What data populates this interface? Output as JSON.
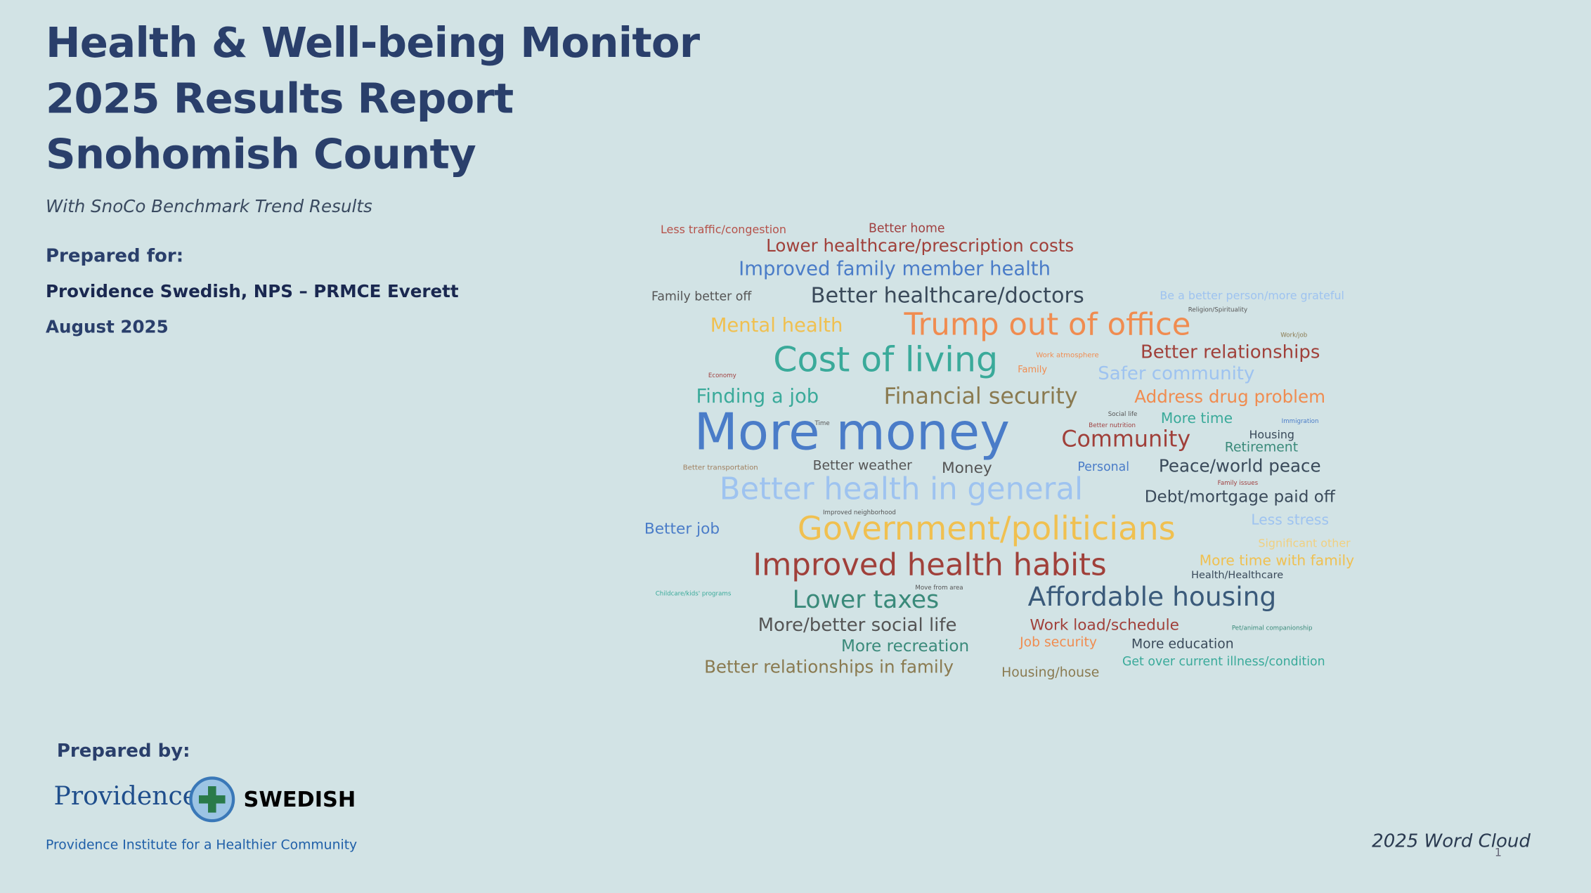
{
  "header": {
    "title_lines": [
      "Health & Well-being Monitor",
      "2025 Results Report",
      "Snohomish County"
    ],
    "subtitle": "With SnoCo Benchmark Trend Results"
  },
  "prepared_for": {
    "label": "Prepared for:",
    "client": "Providence Swedish, NPS – PRMCE Everett",
    "date": "August 2025"
  },
  "prepared_by": {
    "label": "Prepared by:",
    "logo_left": "Providence",
    "logo_right": "SWEDISH",
    "institute": "Providence Institute for a Healthier Community"
  },
  "word_cloud": {
    "caption": "2025 Word Cloud",
    "words": [
      "Less traffic/congestion",
      "Better home",
      "Lower healthcare/prescription costs",
      "Improved family member health",
      "Family better off",
      "Better healthcare/doctors",
      "Be a better person/more grateful",
      "Mental health",
      "Trump out of office",
      "Religion/Spirituality",
      "Work/job",
      "Cost of living",
      "Better relationships",
      "Work atmosphere",
      "Economy",
      "Family",
      "Safer community",
      "Finding a job",
      "Financial security",
      "Address drug problem",
      "More money",
      "Social life",
      "More time",
      "Better nutrition",
      "Immigration",
      "Time",
      "Community",
      "Housing",
      "Retirement",
      "Better transportation",
      "Better weather",
      "Money",
      "Personal",
      "Peace/world peace",
      "Family issues",
      "Better health in general",
      "Debt/mortgage paid off",
      "Improved neighborhood",
      "Better job",
      "Government/politicians",
      "Less stress",
      "Significant other",
      "Improved health habits",
      "More time with family",
      "Health/Healthcare",
      "Childcare/kids' programs",
      "Move from area",
      "Lower taxes",
      "Affordable housing",
      "More/better social life",
      "Work load/schedule",
      "Pet/animal companionship",
      "More recreation",
      "Job security",
      "More education",
      "Get over current illness/condition",
      "Better relationships in family",
      "Housing/house"
    ]
  },
  "page_number": "1"
}
